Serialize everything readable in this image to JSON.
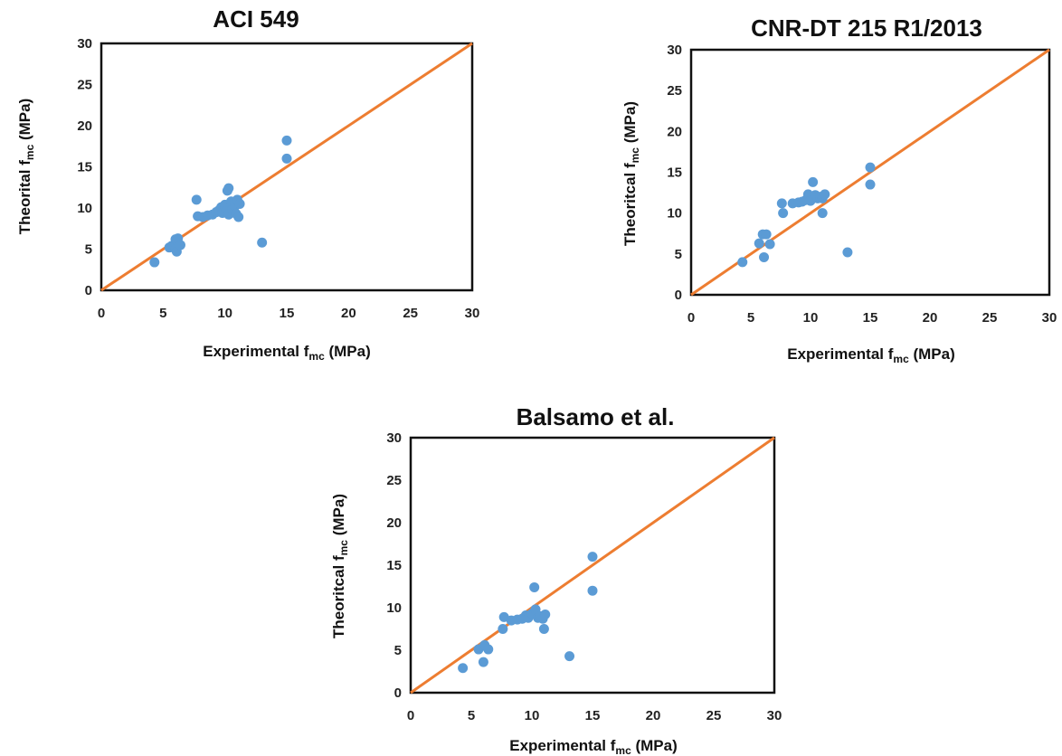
{
  "colors": {
    "points": "#5b9bd5",
    "line": "#ed7d31",
    "frame": "#111111"
  },
  "chart_data": [
    {
      "type": "scatter",
      "title": "ACI 549",
      "xlabel": {
        "prefix": "Experimental  f",
        "sub": "mc",
        "suffix": " (MPa)"
      },
      "ylabel": {
        "prefix": "Theorital  f",
        "sub": "mc",
        "suffix": " (MPa)"
      },
      "xlim": [
        0,
        30
      ],
      "ylim": [
        0,
        30
      ],
      "xticks": [
        "0",
        "5",
        "10",
        "15",
        "20",
        "25",
        "30"
      ],
      "yticks": [
        "0",
        "5",
        "10",
        "15",
        "20",
        "25",
        "30"
      ],
      "grid": false,
      "reference_line": [
        [
          0,
          0
        ],
        [
          30,
          30
        ]
      ],
      "points": [
        [
          4.3,
          3.4
        ],
        [
          5.5,
          5.2
        ],
        [
          5.7,
          5.4
        ],
        [
          6.0,
          6.2
        ],
        [
          6.0,
          5.0
        ],
        [
          6.1,
          4.7
        ],
        [
          6.2,
          6.3
        ],
        [
          6.4,
          5.5
        ],
        [
          7.7,
          11.0
        ],
        [
          7.8,
          9.0
        ],
        [
          8.2,
          8.9
        ],
        [
          8.6,
          9.1
        ],
        [
          9.0,
          9.2
        ],
        [
          9.3,
          9.5
        ],
        [
          9.5,
          9.7
        ],
        [
          9.7,
          10.1
        ],
        [
          9.8,
          9.4
        ],
        [
          10.0,
          10.4
        ],
        [
          10.1,
          9.6
        ],
        [
          10.2,
          12.1
        ],
        [
          10.3,
          12.4
        ],
        [
          10.3,
          9.2
        ],
        [
          10.5,
          10.8
        ],
        [
          10.6,
          9.8
        ],
        [
          10.8,
          10.2
        ],
        [
          10.9,
          9.3
        ],
        [
          11.0,
          11.0
        ],
        [
          11.1,
          8.9
        ],
        [
          11.2,
          10.5
        ],
        [
          13.0,
          5.8
        ],
        [
          15.0,
          18.2
        ],
        [
          15.0,
          16.0
        ]
      ]
    },
    {
      "type": "scatter",
      "title": "CNR-DT 215 R1/2013",
      "xlabel": {
        "prefix": "Experimental  f",
        "sub": "mc",
        "suffix": " (MPa)"
      },
      "ylabel": {
        "prefix": "Theoritcal  f",
        "sub": "mc",
        "suffix": " (MPa)"
      },
      "xlim": [
        0,
        30
      ],
      "ylim": [
        0,
        30
      ],
      "xticks": [
        "0",
        "5",
        "10",
        "15",
        "20",
        "25",
        "30"
      ],
      "yticks": [
        "0",
        "5",
        "10",
        "15",
        "20",
        "25",
        "30"
      ],
      "grid": false,
      "reference_line": [
        [
          0,
          0
        ],
        [
          30,
          30
        ]
      ],
      "points": [
        [
          4.3,
          4.0
        ],
        [
          5.7,
          6.3
        ],
        [
          6.0,
          7.4
        ],
        [
          6.1,
          4.6
        ],
        [
          6.3,
          7.4
        ],
        [
          6.6,
          6.2
        ],
        [
          7.6,
          11.2
        ],
        [
          7.7,
          10.0
        ],
        [
          8.5,
          11.2
        ],
        [
          9.0,
          11.3
        ],
        [
          9.3,
          11.4
        ],
        [
          9.6,
          11.6
        ],
        [
          9.8,
          12.3
        ],
        [
          10.0,
          11.5
        ],
        [
          10.2,
          13.8
        ],
        [
          10.4,
          12.2
        ],
        [
          10.6,
          11.8
        ],
        [
          10.8,
          12.0
        ],
        [
          11.0,
          10.0
        ],
        [
          11.0,
          11.8
        ],
        [
          11.2,
          12.3
        ],
        [
          13.1,
          5.2
        ],
        [
          15.0,
          15.6
        ],
        [
          15.0,
          13.5
        ]
      ]
    },
    {
      "type": "scatter",
      "title": "Balsamo  et al.",
      "xlabel": {
        "prefix": "Experimental  f",
        "sub": "mc",
        "suffix": " (MPa)"
      },
      "ylabel": {
        "prefix": "Theoritcal  f",
        "sub": "mc",
        "suffix": " (MPa)"
      },
      "xlim": [
        0,
        30
      ],
      "ylim": [
        0,
        30
      ],
      "xticks": [
        "0",
        "5",
        "10",
        "15",
        "20",
        "25",
        "30"
      ],
      "yticks": [
        "0",
        "5",
        "10",
        "15",
        "20",
        "25",
        "30"
      ],
      "grid": false,
      "reference_line": [
        [
          0,
          0
        ],
        [
          30,
          30
        ]
      ],
      "points": [
        [
          4.3,
          2.9
        ],
        [
          5.6,
          5.1
        ],
        [
          6.0,
          3.6
        ],
        [
          6.1,
          5.6
        ],
        [
          6.4,
          5.1
        ],
        [
          7.6,
          7.5
        ],
        [
          7.7,
          8.9
        ],
        [
          8.3,
          8.5
        ],
        [
          8.8,
          8.6
        ],
        [
          9.2,
          8.7
        ],
        [
          9.5,
          9.1
        ],
        [
          9.7,
          8.8
        ],
        [
          10.0,
          9.3
        ],
        [
          10.2,
          12.4
        ],
        [
          10.3,
          9.8
        ],
        [
          10.5,
          8.8
        ],
        [
          10.7,
          9.0
        ],
        [
          10.9,
          8.7
        ],
        [
          11.0,
          7.5
        ],
        [
          11.1,
          9.2
        ],
        [
          13.1,
          4.3
        ],
        [
          15.0,
          16.0
        ],
        [
          15.0,
          12.0
        ]
      ]
    }
  ]
}
